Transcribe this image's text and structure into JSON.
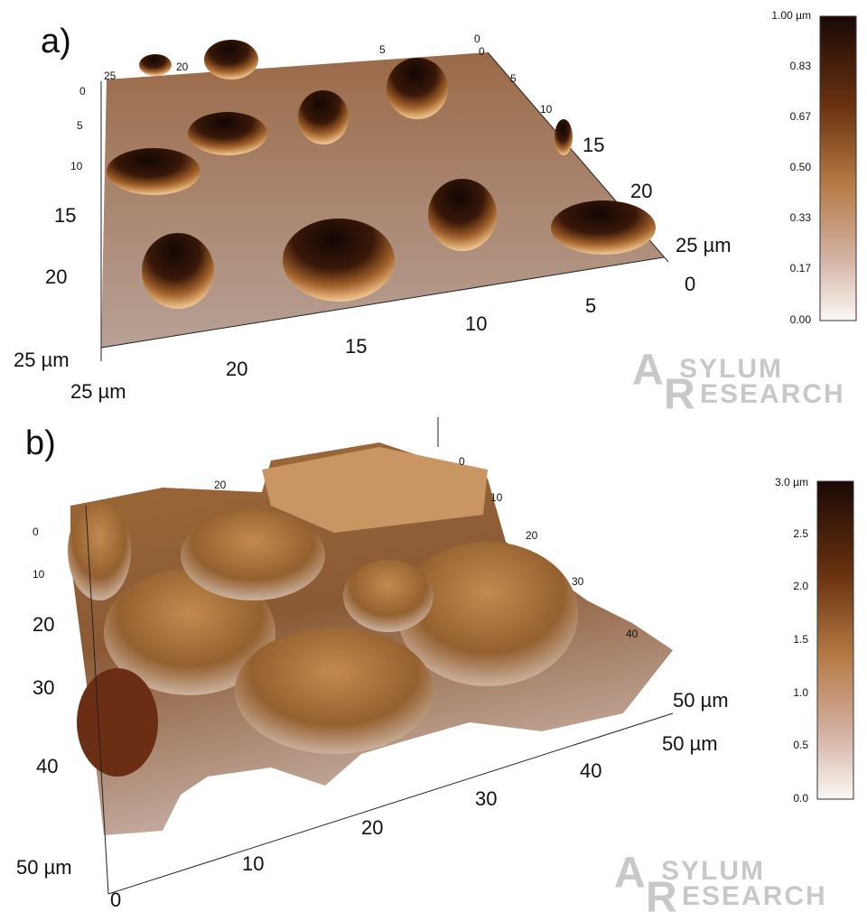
{
  "panels": [
    {
      "label": "a)",
      "left_axis": [
        "0",
        "5",
        "10",
        "15",
        "20",
        "25 µm"
      ],
      "front_axis": [
        "25 µm",
        "20",
        "15",
        "10",
        "5",
        "0"
      ],
      "right_axis": [
        "0",
        "5",
        "10",
        "15",
        "20",
        "25 µm"
      ],
      "back_axis": [
        "25",
        "20",
        "5",
        "0"
      ],
      "colorbar": [
        "1.00 µm",
        "0.83",
        "0.67",
        "0.50",
        "0.33",
        "0.17",
        "0.00"
      ],
      "watermark": [
        "SYLUM",
        "ESEARCH"
      ]
    },
    {
      "label": "b)",
      "left_axis": [
        "0",
        "10",
        "20",
        "30",
        "40",
        "50 µm"
      ],
      "front_axis": [
        "0",
        "10",
        "20",
        "30",
        "40",
        "50 µm"
      ],
      "right_axis": [
        "10",
        "20",
        "30",
        "40",
        "50 µm"
      ],
      "back_axis": [
        "20",
        "0"
      ],
      "colorbar": [
        "3.0 µm",
        "2.5",
        "2.0",
        "1.5",
        "1.0",
        "0.5",
        "0.0"
      ],
      "watermark": [
        "SYLUM",
        "ESEARCH"
      ]
    }
  ]
}
